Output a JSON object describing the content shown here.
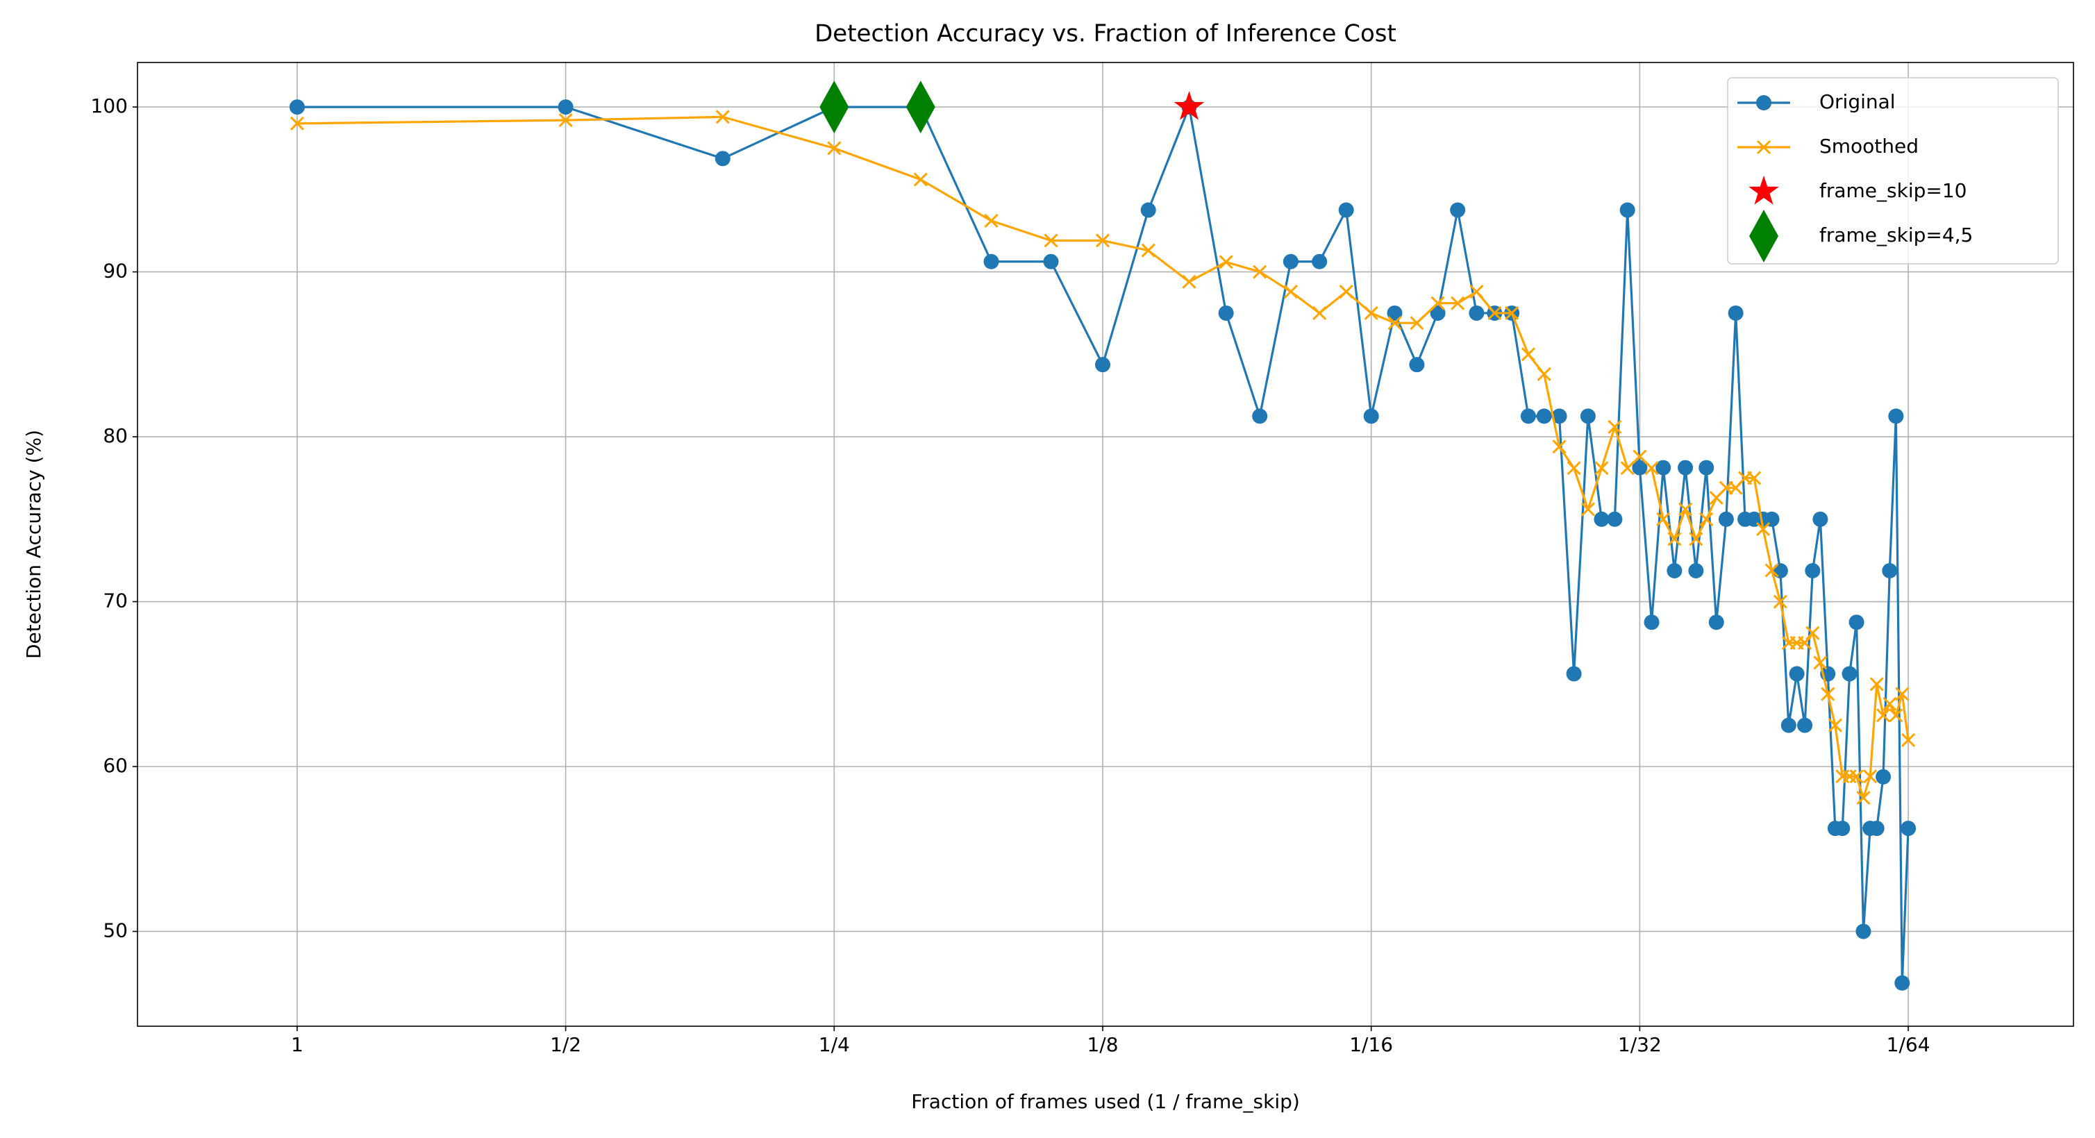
{
  "chart_data": {
    "type": "line",
    "title": "Detection Accuracy vs. Fraction of Inference Cost",
    "xlabel": "Fraction of frames used (1 / frame_skip)",
    "ylabel": "Detection Accuracy (%)",
    "xscale": "log",
    "grid": true,
    "legend": "upper right",
    "xlim": [
      1.51,
      0.0102
    ],
    "ylim": [
      44.25,
      102.7
    ],
    "xticks": [
      1,
      {
        "value": 0.5,
        "label": "1/2"
      },
      {
        "value": 0.25,
        "label": "1/4"
      },
      {
        "value": 0.125,
        "label": "1/8"
      },
      {
        "value": 0.0625,
        "label": "1/16"
      },
      {
        "value": 0.03125,
        "label": "1/32"
      },
      {
        "value": 0.015625,
        "label": "1/64"
      }
    ],
    "yticks": [
      50,
      60,
      70,
      80,
      90,
      100
    ],
    "x": [
      1,
      0.5,
      0.333333,
      0.25,
      0.2,
      0.166667,
      0.142857,
      0.125,
      0.111111,
      0.1,
      0.090909,
      0.083333,
      0.076923,
      0.071429,
      0.066667,
      0.0625,
      0.058824,
      0.055556,
      0.052632,
      0.05,
      0.047619,
      0.045455,
      0.043478,
      0.041667,
      0.04,
      0.038462,
      0.037037,
      0.035714,
      0.034483,
      0.033333,
      0.032258,
      0.03125,
      0.030303,
      0.029412,
      0.028571,
      0.027778,
      0.027027,
      0.026316,
      0.025641,
      0.025,
      0.02439,
      0.02381,
      0.023256,
      0.022727,
      0.022222,
      0.021739,
      0.021277,
      0.020833,
      0.020408,
      0.02,
      0.019608,
      0.019231,
      0.018868,
      0.018519,
      0.018182,
      0.017857,
      0.017544,
      0.017241,
      0.016949,
      0.016667,
      0.016393,
      0.016129,
      0.015873,
      0.015625
    ],
    "series": [
      {
        "name": "Original",
        "color": "#1f77b4",
        "marker": "circle",
        "connected": true,
        "values": [
          100,
          100,
          96.875,
          100,
          100,
          90.625,
          90.625,
          84.375,
          93.75,
          100,
          87.5,
          81.25,
          90.625,
          90.625,
          93.75,
          81.25,
          87.5,
          84.375,
          87.5,
          93.75,
          87.5,
          87.5,
          87.5,
          81.25,
          81.25,
          81.25,
          65.625,
          81.25,
          75,
          75,
          93.75,
          78.125,
          68.75,
          78.125,
          71.875,
          78.125,
          71.875,
          78.125,
          68.75,
          75,
          87.5,
          75,
          75,
          75,
          75,
          71.875,
          62.5,
          65.625,
          62.5,
          71.875,
          75,
          65.625,
          56.25,
          56.25,
          65.625,
          68.75,
          50,
          56.25,
          56.25,
          59.375,
          71.875,
          81.25,
          46.875,
          56.25
        ]
      },
      {
        "name": "Smoothed",
        "color": "#ffa500",
        "marker": "x",
        "connected": true,
        "values": [
          99,
          99.2,
          99.4,
          97.5,
          95.6,
          93.1,
          91.9,
          91.9,
          91.3,
          89.4,
          90.6,
          90,
          88.8,
          87.5,
          88.8,
          87.5,
          86.9,
          86.9,
          88.1,
          88.1,
          88.8,
          87.5,
          87.5,
          85,
          83.8,
          79.4,
          78.1,
          75.6,
          78.1,
          80.6,
          78.1,
          78.8,
          78.1,
          75,
          73.8,
          75.6,
          73.8,
          75,
          76.3,
          76.9,
          76.9,
          77.5,
          77.5,
          74.4,
          71.9,
          70,
          67.5,
          67.5,
          67.5,
          68.1,
          66.3,
          64.4,
          62.5,
          59.4,
          59.4,
          59.4,
          58.1,
          59.4,
          65,
          63.1,
          63.8,
          63.1,
          64.4,
          61.6
        ]
      },
      {
        "name": "frame_skip=10",
        "color": "#ff0000",
        "marker": "star",
        "connected": false,
        "x": [
          0.1
        ],
        "values": [
          100
        ]
      },
      {
        "name": "frame_skip=4,5",
        "color": "#008000",
        "marker": "diamond",
        "connected": false,
        "x": [
          0.25,
          0.2
        ],
        "values": [
          100,
          100
        ]
      }
    ]
  }
}
